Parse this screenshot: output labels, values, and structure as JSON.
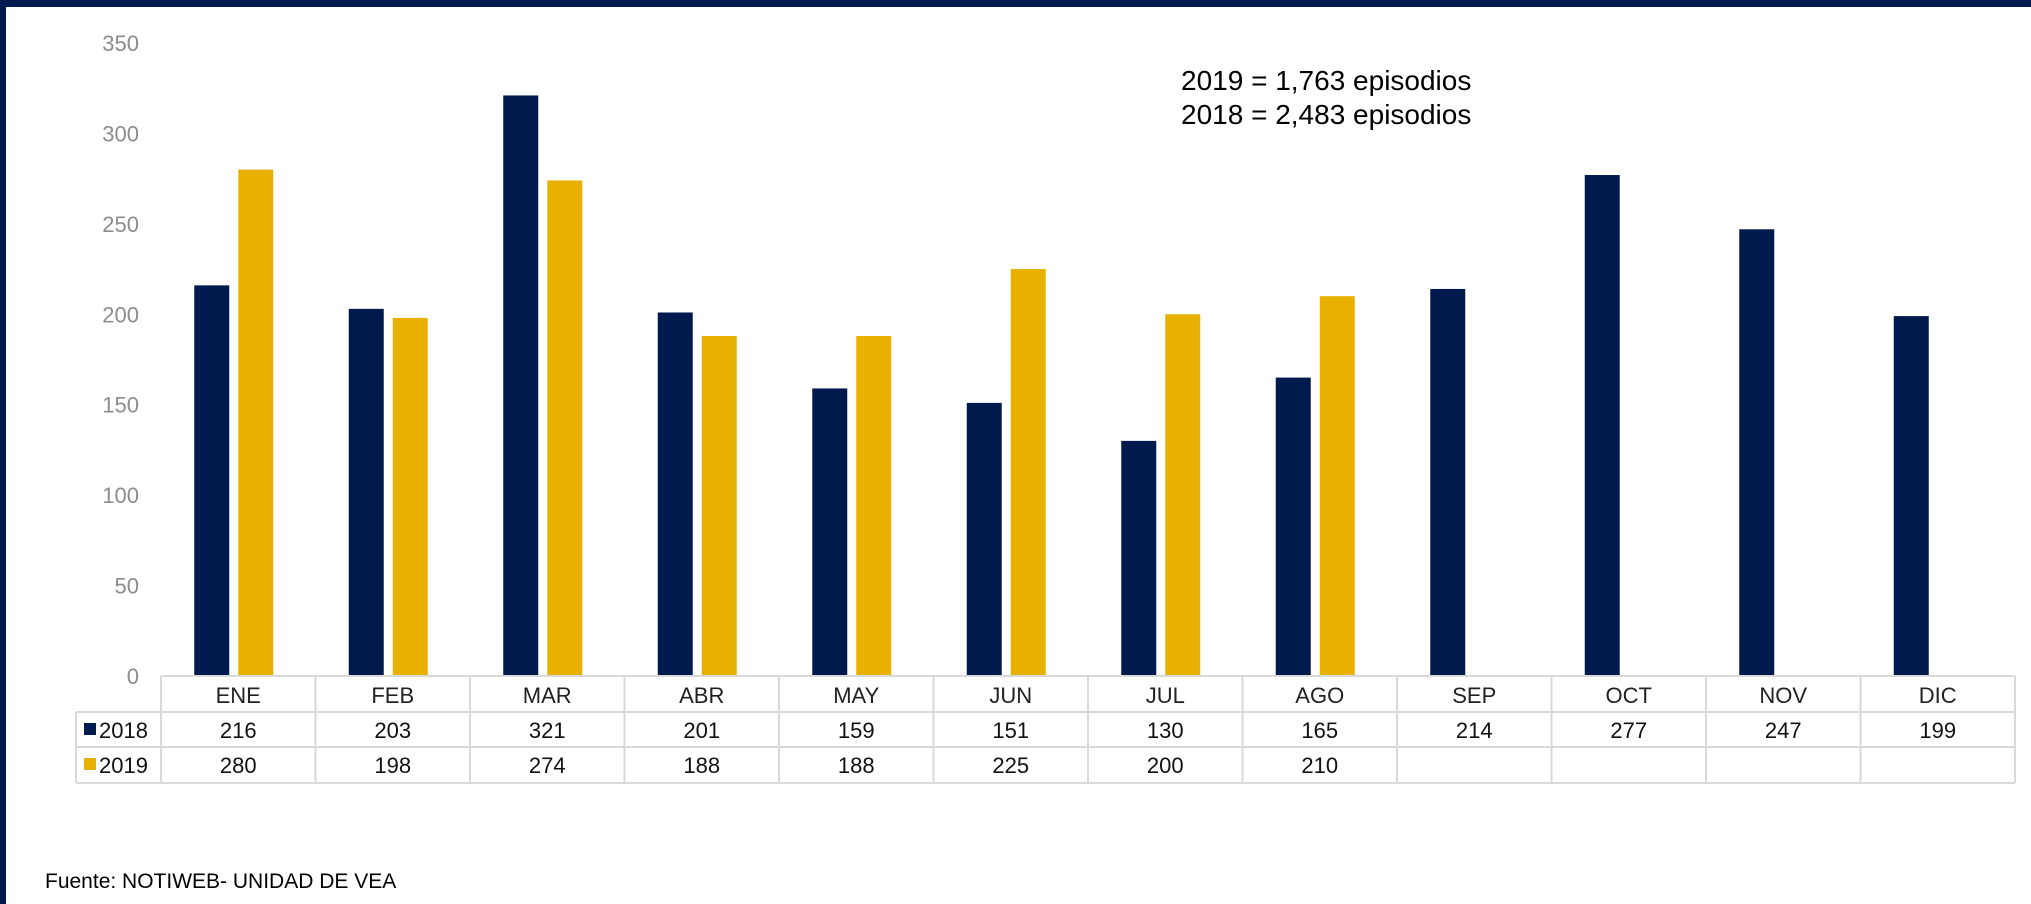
{
  "chart_data": {
    "type": "bar",
    "categories": [
      "ENE",
      "FEB",
      "MAR",
      "ABR",
      "MAY",
      "JUN",
      "JUL",
      "AGO",
      "SEP",
      "OCT",
      "NOV",
      "DIC"
    ],
    "series": [
      {
        "name": "2018",
        "color": "#001a4d",
        "values": [
          216,
          203,
          321,
          201,
          159,
          151,
          130,
          165,
          214,
          277,
          247,
          199
        ]
      },
      {
        "name": "2019",
        "color": "#e8b000",
        "values": [
          280,
          198,
          274,
          188,
          188,
          225,
          200,
          210,
          null,
          null,
          null,
          null
        ]
      }
    ],
    "ylim": [
      0,
      350
    ],
    "yticks": [
      0,
      50,
      100,
      150,
      200,
      250,
      300,
      350
    ],
    "annotations": [
      "2019 = 1,763 episodios",
      "2018 = 2,483 episodios"
    ],
    "data_table": true,
    "grid": false
  },
  "source": "Fuente: NOTIWEB- UNIDAD DE VEA",
  "colors": {
    "frame": "#001a4d",
    "axis_text": "#8c8c8c",
    "table_border": "#d9d9d9"
  }
}
